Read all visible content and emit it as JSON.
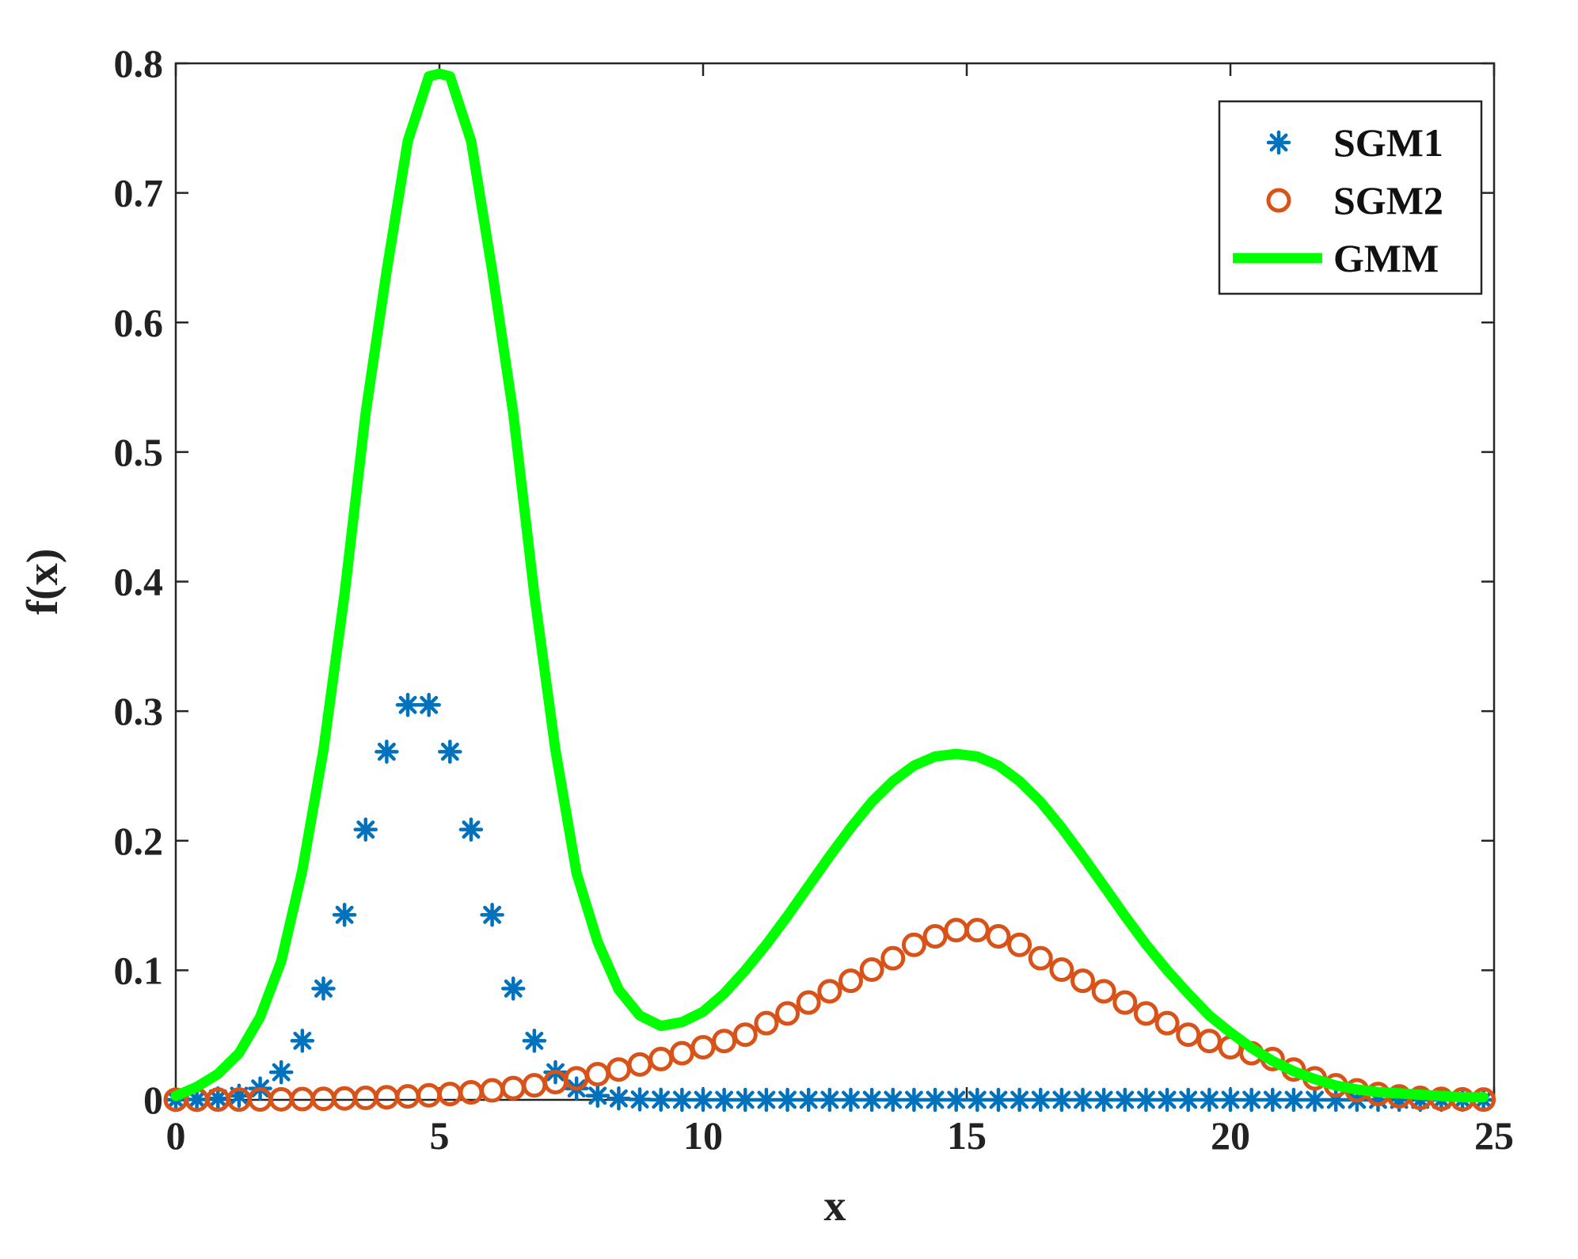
{
  "chart_data": {
    "type": "line",
    "title": "",
    "xlabel": "x",
    "ylabel": "f(x)",
    "xlim": [
      0,
      25
    ],
    "ylim": [
      0,
      0.8
    ],
    "xticks": [
      0,
      5,
      10,
      15,
      20,
      25
    ],
    "xtick_labels": [
      "0",
      "5",
      "10",
      "15",
      "20",
      "25"
    ],
    "yticks": [
      0,
      0.1,
      0.2,
      0.3,
      0.4,
      0.5,
      0.6,
      0.7,
      0.8
    ],
    "ytick_labels": [
      "0",
      "0.1",
      "0.2",
      "0.3",
      "0.4",
      "0.5",
      "0.6",
      "0.7",
      "0.8"
    ],
    "grid": false,
    "legend_position": "top-right",
    "series": [
      {
        "name": "SGM1",
        "style": "asterisk-markers",
        "color": "#0072BD",
        "x": [
          0,
          0.4,
          0.8,
          1.2,
          1.6,
          2.0,
          2.4,
          2.8,
          3.2,
          3.6,
          4.0,
          4.4,
          4.8,
          5.2,
          5.6,
          6.0,
          6.4,
          6.8,
          7.2,
          7.6,
          8.0,
          8.4,
          8.8,
          9.2,
          9.6,
          10.0,
          10.4,
          10.8,
          11.2,
          11.6,
          12.0,
          12.4,
          12.8,
          13.2,
          13.6,
          14.0,
          14.4,
          14.8,
          15.2,
          15.6,
          16.0,
          16.4,
          16.8,
          17.2,
          17.6,
          18.0,
          18.4,
          18.8,
          19.2,
          19.6,
          20.0,
          20.4,
          20.8,
          21.2,
          21.6,
          22.0,
          22.4,
          22.8,
          23.2,
          23.6,
          24.0,
          24.4,
          24.8
        ],
        "values": [
          0.0001,
          0.0003,
          0.0011,
          0.0032,
          0.0088,
          0.0213,
          0.0456,
          0.0859,
          0.1428,
          0.2086,
          0.2687,
          0.3048,
          0.3048,
          0.2687,
          0.2086,
          0.1428,
          0.0859,
          0.0456,
          0.0213,
          0.0088,
          0.0032,
          0.0011,
          0.0003,
          0.0001,
          0,
          0,
          0,
          0,
          0,
          0,
          0,
          0,
          0,
          0,
          0,
          0,
          0,
          0,
          0,
          0,
          0,
          0,
          0,
          0,
          0,
          0,
          0,
          0,
          0,
          0,
          0,
          0,
          0,
          0,
          0,
          0,
          0,
          0,
          0,
          0,
          0,
          0,
          0
        ]
      },
      {
        "name": "SGM2",
        "style": "circle-markers",
        "color": "#D95319",
        "x": [
          0,
          0.4,
          0.8,
          1.2,
          1.6,
          2.0,
          2.4,
          2.8,
          3.2,
          3.6,
          4.0,
          4.4,
          4.8,
          5.2,
          5.6,
          6.0,
          6.4,
          6.8,
          7.2,
          7.6,
          8.0,
          8.4,
          8.8,
          9.2,
          9.6,
          10.0,
          10.4,
          10.8,
          11.2,
          11.6,
          12.0,
          12.4,
          12.8,
          13.2,
          13.6,
          14.0,
          14.4,
          14.8,
          15.2,
          15.6,
          16.0,
          16.4,
          16.8,
          17.2,
          17.6,
          18.0,
          18.4,
          18.8,
          19.2,
          19.6,
          20.0,
          20.4,
          20.8,
          21.2,
          21.6,
          22.0,
          22.4,
          22.8,
          23.2,
          23.6,
          24.0,
          24.4,
          24.8
        ],
        "values": [
          0.0001,
          0.0001,
          0.0002,
          0.0002,
          0.0003,
          0.0004,
          0.0006,
          0.0008,
          0.0011,
          0.0015,
          0.002,
          0.0027,
          0.0035,
          0.0045,
          0.0058,
          0.0073,
          0.0091,
          0.0112,
          0.0137,
          0.0166,
          0.0198,
          0.0234,
          0.0273,
          0.0315,
          0.036,
          0.0406,
          0.0454,
          0.0503,
          0.0592,
          0.0667,
          0.0751,
          0.0838,
          0.0919,
          0.1005,
          0.1093,
          0.1196,
          0.1262,
          0.131,
          0.131,
          0.1262,
          0.1196,
          0.1093,
          0.1005,
          0.0919,
          0.0838,
          0.0751,
          0.0667,
          0.0592,
          0.0503,
          0.0454,
          0.0406,
          0.036,
          0.0315,
          0.0234,
          0.0166,
          0.0112,
          0.0073,
          0.0045,
          0.0027,
          0.0015,
          0.0008,
          0.0004,
          0.0002
        ]
      },
      {
        "name": "GMM",
        "style": "line",
        "color": "#00FF00",
        "x": [
          0,
          0.4,
          0.8,
          1.2,
          1.6,
          2.0,
          2.4,
          2.8,
          3.2,
          3.6,
          4.0,
          4.4,
          4.8,
          5.0,
          5.2,
          5.6,
          6.0,
          6.4,
          6.8,
          7.2,
          7.6,
          8.0,
          8.4,
          8.8,
          9.2,
          9.6,
          10.0,
          10.4,
          10.8,
          11.2,
          11.6,
          12.0,
          12.4,
          12.8,
          13.2,
          13.6,
          14.0,
          14.4,
          14.8,
          15.2,
          15.6,
          16.0,
          16.4,
          16.8,
          17.2,
          17.6,
          18.0,
          18.4,
          18.8,
          19.2,
          19.6,
          20.0,
          20.4,
          20.8,
          21.2,
          21.6,
          22.0,
          22.4,
          22.8,
          23.2,
          23.6,
          24.0,
          24.4,
          24.8
        ],
        "values": [
          0.003,
          0.01,
          0.02,
          0.036,
          0.064,
          0.107,
          0.177,
          0.27,
          0.39,
          0.53,
          0.64,
          0.74,
          0.79,
          0.792,
          0.79,
          0.74,
          0.64,
          0.53,
          0.39,
          0.27,
          0.175,
          0.122,
          0.085,
          0.065,
          0.057,
          0.06,
          0.068,
          0.082,
          0.1,
          0.12,
          0.142,
          0.165,
          0.188,
          0.21,
          0.23,
          0.246,
          0.258,
          0.265,
          0.267,
          0.265,
          0.258,
          0.246,
          0.23,
          0.21,
          0.188,
          0.165,
          0.142,
          0.12,
          0.1,
          0.082,
          0.065,
          0.052,
          0.04,
          0.03,
          0.022,
          0.016,
          0.011,
          0.008,
          0.006,
          0.005,
          0.004,
          0.003,
          0.002,
          0.002
        ]
      }
    ]
  }
}
